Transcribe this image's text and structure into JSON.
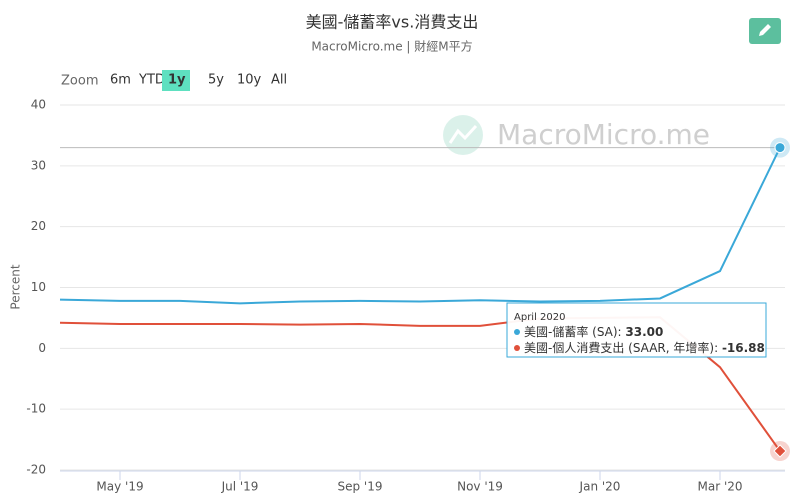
{
  "chart_data": {
    "type": "line",
    "title": "美國-儲蓄率vs.消費支出",
    "subtitle": "MacroMicro.me | 財經M平方",
    "watermark": "MacroMicro.me",
    "y_label": "Percent",
    "zoom": {
      "label": "Zoom",
      "buttons": [
        "6m",
        "YTD",
        "1y",
        "5y",
        "10y",
        "All"
      ],
      "active": 2
    },
    "categories": [
      null,
      "May '19",
      null,
      "Jul '19",
      null,
      "Sep '19",
      null,
      "Nov '19",
      null,
      "Jan '20",
      null,
      "Mar '20",
      null
    ],
    "series": [
      {
        "name": "美國-儲蓄率 (SA)",
        "color": "#3aa8d8",
        "values": [
          8.0,
          7.8,
          7.8,
          7.4,
          7.7,
          7.8,
          7.7,
          7.9,
          7.7,
          7.8,
          8.2,
          12.7,
          33.0
        ],
        "value_labels": [
          null,
          null,
          null,
          null,
          null,
          null,
          null,
          null,
          null,
          null,
          null,
          null,
          "33.00"
        ]
      },
      {
        "name": "美國-個人消費支出 (SAAR, 年增率)",
        "color": "#e0503a",
        "values": [
          4.2,
          4.0,
          4.0,
          4.0,
          3.9,
          4.0,
          3.7,
          3.7,
          4.9,
          5.0,
          5.1,
          -3.1,
          -16.88
        ],
        "value_labels": [
          null,
          null,
          null,
          null,
          null,
          null,
          null,
          null,
          null,
          null,
          null,
          null,
          "-16.88"
        ]
      }
    ],
    "tooltip": {
      "title": "April 2020",
      "labels": [
        "美國-儲蓄率 (SA): ",
        "美國-個人消費支出 (SAAR, 年增率): "
      ]
    },
    "ylim": [
      -20,
      40
    ],
    "yticks": [
      -20,
      -10,
      0,
      10,
      20,
      30,
      40
    ],
    "grid": true
  }
}
